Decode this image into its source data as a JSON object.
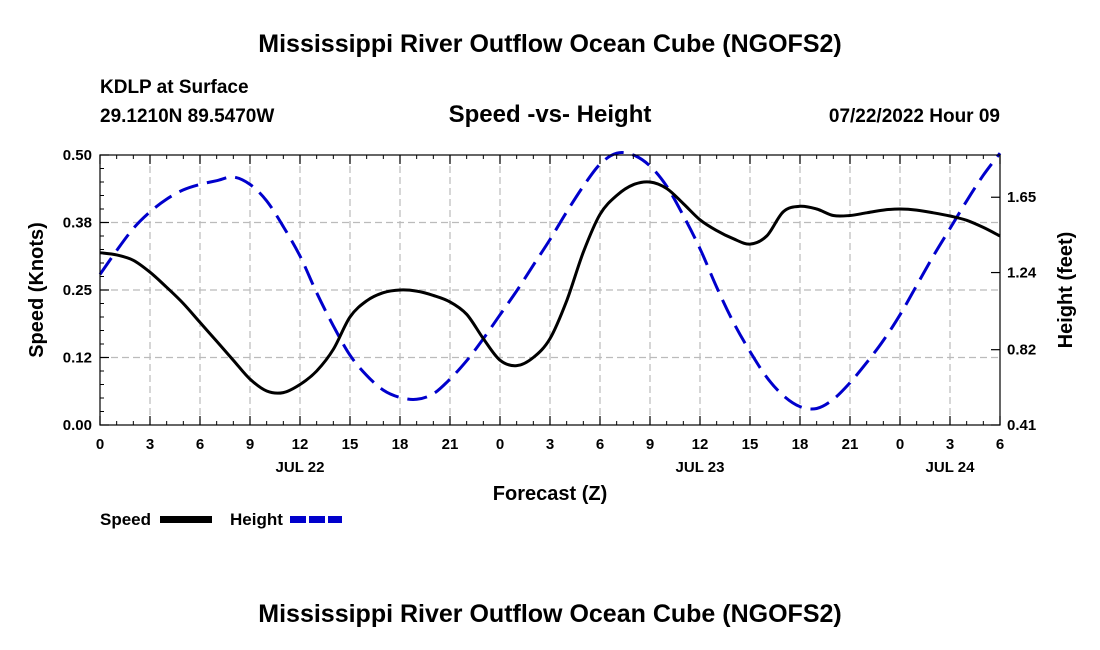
{
  "page": {
    "title": "Mississippi River Outflow Ocean Cube (NGOFS2)",
    "title_bottom": "Mississippi River Outflow Ocean Cube (NGOFS2)",
    "station": "KDLP at Surface",
    "coords": "29.1210N  89.5470W",
    "plot_title": "Speed -vs- Height",
    "datetime": "07/22/2022 Hour 09"
  },
  "chart_data": {
    "type": "line",
    "title": "Speed -vs- Height",
    "xlabel": "Forecast (Z)",
    "ylabel": "Speed (Knots)",
    "y2label": "Height (feet)",
    "x_hours_range": [
      0,
      54
    ],
    "ylim": [
      0,
      0.5
    ],
    "y2lim": [
      0.41,
      1.88
    ],
    "x_tick_hours": [
      0,
      3,
      6,
      9,
      12,
      15,
      18,
      21,
      24,
      27,
      30,
      33,
      36,
      39,
      42,
      45,
      48,
      51,
      54
    ],
    "x_tick_labels": [
      "0",
      "3",
      "6",
      "9",
      "12",
      "15",
      "18",
      "21",
      "0",
      "3",
      "6",
      "9",
      "12",
      "15",
      "18",
      "21",
      "0",
      "3",
      "6"
    ],
    "date_labels": [
      {
        "hour": 12,
        "label": "JUL 22"
      },
      {
        "hour": 36,
        "label": "JUL 23"
      },
      {
        "hour": 51,
        "label": "JUL 24"
      }
    ],
    "y_ticks": [
      0,
      0.125,
      0.25,
      0.375,
      0.5
    ],
    "y_tick_labels": [
      "0.00",
      "0.12",
      "0.25",
      "0.38",
      "0.50"
    ],
    "y2_ticks": [
      0.41,
      0.82,
      1.24,
      1.65
    ],
    "y2_tick_labels": [
      "0.41",
      "0.82",
      "1.24",
      "1.65"
    ],
    "grid": true,
    "legend_position": "bottom-left",
    "series": [
      {
        "name": "Speed",
        "axis": "left",
        "color": "#000000",
        "style": "solid",
        "x": [
          0,
          1,
          2,
          3,
          4,
          5,
          6,
          7,
          8,
          9,
          10,
          11,
          12,
          13,
          14,
          15,
          16,
          17,
          18,
          19,
          20,
          21,
          22,
          23,
          24,
          25,
          26,
          27,
          28,
          29,
          30,
          31,
          32,
          33,
          34,
          35,
          36,
          37,
          38,
          39,
          40,
          41,
          42,
          43,
          44,
          45,
          46,
          47,
          48,
          49,
          50,
          51,
          52,
          53,
          54
        ],
        "values": [
          0.319,
          0.315,
          0.305,
          0.283,
          0.255,
          0.225,
          0.19,
          0.155,
          0.12,
          0.085,
          0.063,
          0.06,
          0.075,
          0.1,
          0.14,
          0.2,
          0.23,
          0.245,
          0.25,
          0.248,
          0.24,
          0.228,
          0.205,
          0.16,
          0.12,
          0.11,
          0.125,
          0.16,
          0.23,
          0.32,
          0.39,
          0.425,
          0.445,
          0.45,
          0.438,
          0.41,
          0.38,
          0.36,
          0.345,
          0.335,
          0.35,
          0.395,
          0.405,
          0.4,
          0.388,
          0.388,
          0.393,
          0.398,
          0.4,
          0.398,
          0.393,
          0.387,
          0.379,
          0.366,
          0.35
        ]
      },
      {
        "name": "Height",
        "axis": "right",
        "color": "#0000cc",
        "style": "dashed",
        "x": [
          0,
          1,
          2,
          3,
          4,
          5,
          6,
          7,
          8,
          9,
          10,
          11,
          12,
          13,
          14,
          15,
          16,
          17,
          18,
          19,
          20,
          21,
          22,
          23,
          24,
          25,
          26,
          27,
          28,
          29,
          30,
          31,
          32,
          33,
          34,
          35,
          36,
          37,
          38,
          39,
          40,
          41,
          42,
          43,
          44,
          45,
          46,
          47,
          48,
          49,
          50,
          51,
          52,
          53,
          54
        ],
        "values": [
          1.23,
          1.36,
          1.48,
          1.57,
          1.64,
          1.69,
          1.72,
          1.74,
          1.76,
          1.72,
          1.63,
          1.49,
          1.33,
          1.13,
          0.95,
          0.79,
          0.68,
          0.6,
          0.56,
          0.55,
          0.58,
          0.66,
          0.76,
          0.88,
          1.01,
          1.14,
          1.28,
          1.42,
          1.57,
          1.71,
          1.83,
          1.89,
          1.88,
          1.82,
          1.71,
          1.55,
          1.37,
          1.16,
          0.97,
          0.81,
          0.67,
          0.57,
          0.51,
          0.5,
          0.55,
          0.64,
          0.75,
          0.87,
          1.01,
          1.17,
          1.33,
          1.48,
          1.63,
          1.77,
          1.89
        ]
      }
    ]
  }
}
